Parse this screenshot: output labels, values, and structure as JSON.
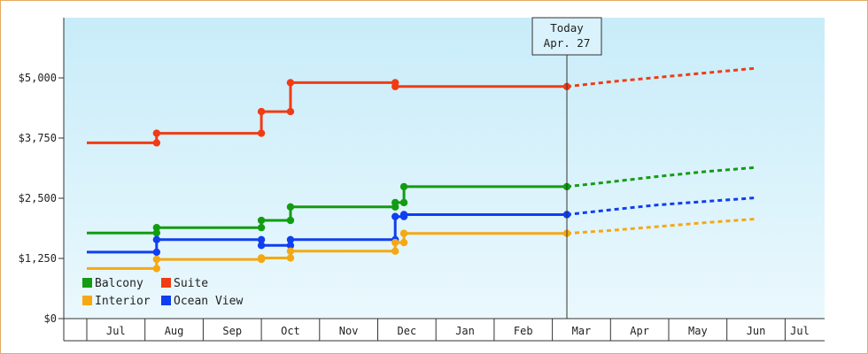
{
  "chart_data": {
    "type": "line",
    "title": "",
    "xlabel": "",
    "ylabel": "",
    "y_ticks": [
      "$0",
      "$1,250",
      "$2,500",
      "$3,750",
      "$5,000"
    ],
    "ylim": [
      0,
      6250
    ],
    "x_months": [
      "Jul",
      "Aug",
      "Sep",
      "Oct",
      "Nov",
      "Dec",
      "Jan",
      "Feb",
      "Mar",
      "Apr",
      "May",
      "Jun",
      "Jul"
    ],
    "today": {
      "line1": "Today",
      "line2": "Apr. 27",
      "x": 7.75
    },
    "background_gradient": [
      "#c8ecf9",
      "#eaf8fd"
    ],
    "legend_position": "bottom-left",
    "series": [
      {
        "name": "Suite",
        "color": "#f03c14",
        "points": [
          [
            -0.5,
            3650
          ],
          [
            0.7,
            3650
          ],
          [
            0.7,
            3850
          ],
          [
            2.5,
            3850
          ],
          [
            2.5,
            4300
          ],
          [
            3.0,
            4300
          ],
          [
            3.0,
            4900
          ],
          [
            4.8,
            4900
          ],
          [
            4.8,
            4820
          ],
          [
            7.75,
            4820
          ]
        ],
        "forecast": [
          [
            7.75,
            4820
          ],
          [
            8.5,
            4920
          ],
          [
            9.3,
            5010
          ],
          [
            10.1,
            5100
          ],
          [
            11.0,
            5200
          ]
        ]
      },
      {
        "name": "Balcony",
        "color": "#129c12",
        "points": [
          [
            -0.5,
            1780
          ],
          [
            0.7,
            1780
          ],
          [
            0.7,
            1890
          ],
          [
            2.5,
            1890
          ],
          [
            2.5,
            2040
          ],
          [
            3.0,
            2040
          ],
          [
            3.0,
            2320
          ],
          [
            4.8,
            2320
          ],
          [
            4.8,
            2410
          ],
          [
            4.95,
            2410
          ],
          [
            4.95,
            2740
          ],
          [
            7.75,
            2740
          ]
        ],
        "forecast": [
          [
            7.75,
            2740
          ],
          [
            8.5,
            2840
          ],
          [
            9.3,
            2950
          ],
          [
            10.1,
            3050
          ],
          [
            11.0,
            3140
          ]
        ]
      },
      {
        "name": "Ocean View",
        "color": "#0f3ff0",
        "points": [
          [
            -0.5,
            1380
          ],
          [
            0.7,
            1380
          ],
          [
            0.7,
            1640
          ],
          [
            2.5,
            1640
          ],
          [
            2.5,
            1520
          ],
          [
            3.0,
            1520
          ],
          [
            3.0,
            1640
          ],
          [
            4.8,
            1640
          ],
          [
            4.8,
            2120
          ],
          [
            4.95,
            2120
          ],
          [
            4.95,
            2160
          ],
          [
            7.75,
            2160
          ]
        ],
        "forecast": [
          [
            7.75,
            2160
          ],
          [
            8.5,
            2260
          ],
          [
            9.3,
            2360
          ],
          [
            10.1,
            2430
          ],
          [
            11.0,
            2510
          ]
        ]
      },
      {
        "name": "Interior",
        "color": "#f5a812",
        "points": [
          [
            -0.5,
            1040
          ],
          [
            0.7,
            1040
          ],
          [
            0.7,
            1230
          ],
          [
            2.5,
            1230
          ],
          [
            2.5,
            1260
          ],
          [
            3.0,
            1260
          ],
          [
            3.0,
            1400
          ],
          [
            4.8,
            1400
          ],
          [
            4.8,
            1580
          ],
          [
            4.95,
            1580
          ],
          [
            4.95,
            1770
          ],
          [
            7.75,
            1770
          ]
        ],
        "forecast": [
          [
            7.75,
            1770
          ],
          [
            8.5,
            1830
          ],
          [
            9.3,
            1910
          ],
          [
            10.1,
            1990
          ],
          [
            11.0,
            2070
          ]
        ]
      }
    ]
  },
  "legend": [
    {
      "name": "Balcony",
      "color": "#129c12"
    },
    {
      "name": "Suite",
      "color": "#f03c14"
    },
    {
      "name": "Interior",
      "color": "#f5a812"
    },
    {
      "name": "Ocean View",
      "color": "#0f3ff0"
    }
  ]
}
